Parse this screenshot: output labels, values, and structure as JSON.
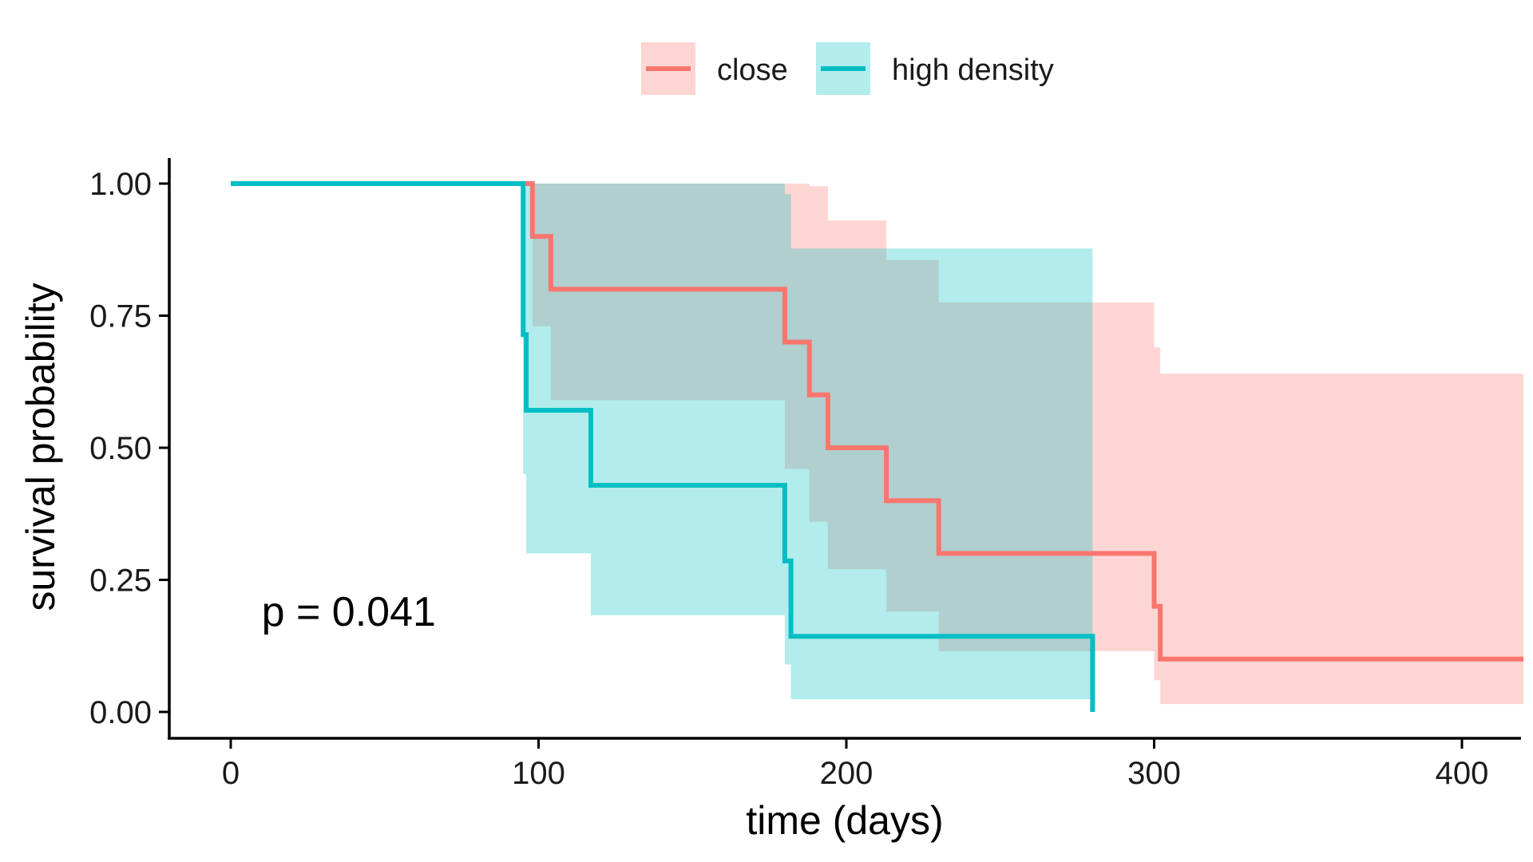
{
  "chart_data": {
    "type": "line",
    "subtype": "kaplan-meier survival curve with confidence bands",
    "xlabel": "time (days)",
    "ylabel": "survival probability",
    "xlim": [
      -20,
      420
    ],
    "ylim": [
      -0.05,
      1.05
    ],
    "x_ticks": [
      0,
      100,
      200,
      300,
      400
    ],
    "x_tick_labels": [
      "0",
      "100",
      "200",
      "300",
      "400"
    ],
    "y_ticks": [
      0,
      0.25,
      0.5,
      0.75,
      1
    ],
    "y_tick_labels": [
      "0.00",
      "0.25",
      "0.50",
      "0.75",
      "1.00"
    ],
    "grid": false,
    "legend_position": "top",
    "annotation": {
      "text": "p = 0.041",
      "x": 10,
      "y": 0.19
    },
    "band_opacity": 0.3,
    "series": [
      {
        "name": "close",
        "color": "#F8766D",
        "steps": [
          {
            "x": 0,
            "y": 1.0,
            "lower": 1.0,
            "upper": 1.0
          },
          {
            "x": 98,
            "y": 0.9,
            "lower": 0.73,
            "upper": 1.0
          },
          {
            "x": 104,
            "y": 0.8,
            "lower": 0.59,
            "upper": 1.0
          },
          {
            "x": 180,
            "y": 0.7,
            "lower": 0.46,
            "upper": 1.0
          },
          {
            "x": 188,
            "y": 0.6,
            "lower": 0.36,
            "upper": 0.995
          },
          {
            "x": 194,
            "y": 0.5,
            "lower": 0.27,
            "upper": 0.93
          },
          {
            "x": 213,
            "y": 0.4,
            "lower": 0.19,
            "upper": 0.855
          },
          {
            "x": 230,
            "y": 0.3,
            "lower": 0.115,
            "upper": 0.775
          },
          {
            "x": 300,
            "y": 0.2,
            "lower": 0.06,
            "upper": 0.69
          },
          {
            "x": 302,
            "y": 0.1,
            "lower": 0.015,
            "upper": 0.64
          }
        ],
        "end_x": 420
      },
      {
        "name": "high density",
        "color": "#00BFC4",
        "steps": [
          {
            "x": 0,
            "y": 1.0,
            "lower": 1.0,
            "upper": 1.0
          },
          {
            "x": 95,
            "y": 0.714,
            "lower": 0.45,
            "upper": 1.0
          },
          {
            "x": 96,
            "y": 0.571,
            "lower": 0.3,
            "upper": 1.0
          },
          {
            "x": 117,
            "y": 0.429,
            "lower": 0.183,
            "upper": 1.0
          },
          {
            "x": 180,
            "y": 0.286,
            "lower": 0.09,
            "upper": 0.98
          },
          {
            "x": 182,
            "y": 0.143,
            "lower": 0.024,
            "upper": 0.877
          },
          {
            "x": 280,
            "y": 0.0,
            "lower": 0.0,
            "upper": 0.0
          }
        ],
        "end_x": 280
      }
    ]
  }
}
